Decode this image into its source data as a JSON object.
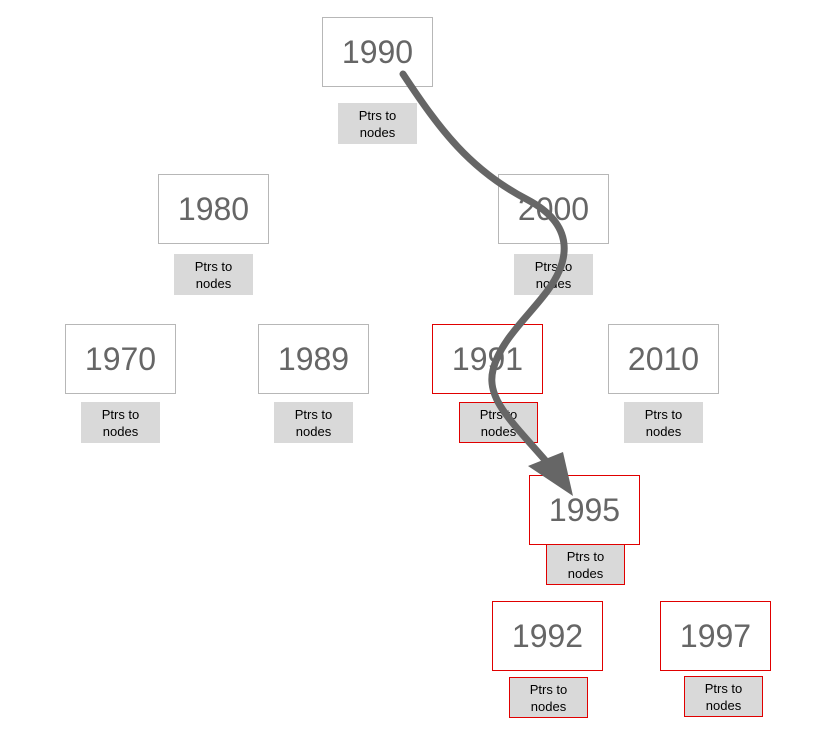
{
  "nodes": [
    {
      "id": "1990",
      "year": "1990",
      "ptrs_line1": "Ptrs to",
      "ptrs_line2": "nodes",
      "highlighted": false
    },
    {
      "id": "1980",
      "year": "1980",
      "ptrs_line1": "Ptrs to",
      "ptrs_line2": "nodes",
      "highlighted": false
    },
    {
      "id": "2000",
      "year": "2000",
      "ptrs_line1": "Ptrs to",
      "ptrs_line2": "nodes",
      "highlighted": false
    },
    {
      "id": "1970",
      "year": "1970",
      "ptrs_line1": "Ptrs to",
      "ptrs_line2": "nodes",
      "highlighted": false
    },
    {
      "id": "1989",
      "year": "1989",
      "ptrs_line1": "Ptrs to",
      "ptrs_line2": "nodes",
      "highlighted": false
    },
    {
      "id": "1991",
      "year": "1991",
      "ptrs_line1": "Ptrs to",
      "ptrs_line2": "nodes",
      "highlighted": true
    },
    {
      "id": "2010",
      "year": "2010",
      "ptrs_line1": "Ptrs to",
      "ptrs_line2": "nodes",
      "highlighted": false
    },
    {
      "id": "1995",
      "year": "1995",
      "ptrs_line1": "Ptrs to",
      "ptrs_line2": "nodes",
      "highlighted": true
    },
    {
      "id": "1992",
      "year": "1992",
      "ptrs_line1": "Ptrs to",
      "ptrs_line2": "nodes",
      "highlighted": true
    },
    {
      "id": "1997",
      "year": "1997",
      "ptrs_line1": "Ptrs to",
      "ptrs_line2": "nodes",
      "highlighted": true
    }
  ],
  "search_path": [
    "1990",
    "2000",
    "1991",
    "1995"
  ],
  "colors": {
    "highlight_border": "#e00000",
    "default_border": "#b7b7b7",
    "ptrs_fill": "#d9d9d9",
    "arrow": "#666666",
    "year_text": "#666666"
  }
}
